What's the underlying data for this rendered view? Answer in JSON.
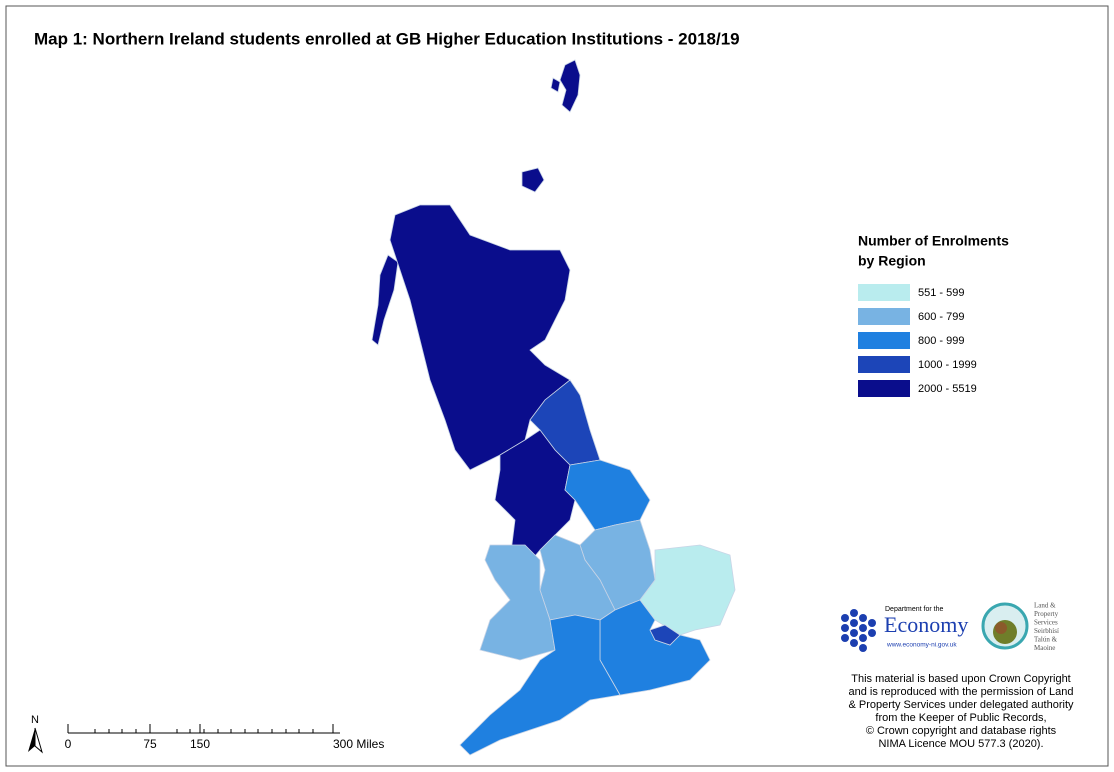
{
  "title": "Map 1: Northern Ireland students enrolled at GB Higher Education Institutions - 2018/19",
  "legend": {
    "title_lines": [
      "Number of Enrolments",
      "by Region"
    ],
    "items": [
      {
        "label": "551 - 599",
        "color": "#b9ecee"
      },
      {
        "label": "600 - 799",
        "color": "#78b3e3"
      },
      {
        "label": "800 - 999",
        "color": "#1f80e0"
      },
      {
        "label": "1000 - 1999",
        "color": "#1c45b8"
      },
      {
        "label": "2000 - 5519",
        "color": "#0a0d8c"
      }
    ]
  },
  "north_label": "N",
  "scale_bar": {
    "labels": [
      "0",
      "75",
      "150",
      "300 Miles"
    ]
  },
  "logos": {
    "economy": {
      "line1": "Department for the",
      "name": "Economy",
      "url": "www.economy-ni.gov.uk"
    },
    "lps": {
      "lines": [
        "Land &",
        "Property",
        "Services",
        "Seirbhísí",
        "Talún &",
        "Maoine"
      ]
    }
  },
  "copyright_lines": [
    "This material is based upon Crown Copyright",
    "and is reproduced with the permission of Land",
    "& Property Services under delegated authority",
    "from the Keeper of Public Records,",
    "© Crown copyright and database rights",
    "NIMA Licence MOU 577.3 (2020)."
  ]
}
